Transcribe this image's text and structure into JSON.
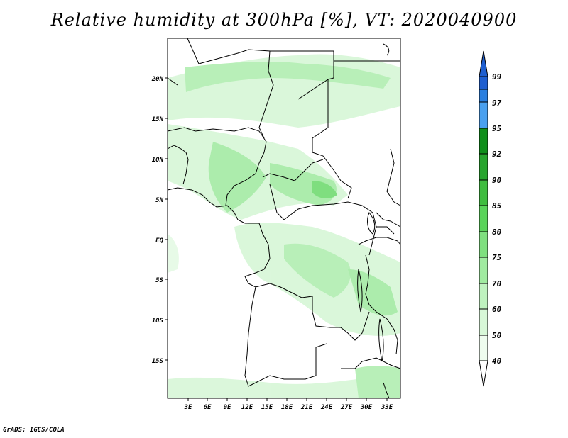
{
  "title": "Relative humidity at 300hPa [%], VT: 2020040900",
  "footer": "GrADS: IGES/COLA",
  "map": {
    "lat_labels": [
      "20N",
      "15N",
      "10N",
      "5N",
      "EQ",
      "5S",
      "10S",
      "15S"
    ],
    "lon_labels": [
      "3E",
      "6E",
      "9E",
      "12E",
      "15E",
      "18E",
      "21E",
      "24E",
      "27E",
      "30E",
      "33E"
    ]
  },
  "colorbar": {
    "levels": [
      "99",
      "97",
      "95",
      "92",
      "90",
      "85",
      "80",
      "75",
      "70",
      "60",
      "50",
      "40"
    ],
    "colors": [
      "#1f5fd0",
      "#2a7fe0",
      "#4aa0ef",
      "#0f8f1a",
      "#27a52d",
      "#3fbd3f",
      "#5ad45a",
      "#7fe07f",
      "#a0eba0",
      "#bff2bf",
      "#d8f8d8",
      "#eefcee"
    ]
  },
  "colors": {
    "land_line": "#000000",
    "humidity_light": "#d9f7d9",
    "humidity_mid": "#9fe89f",
    "humidity_dark": "#5fd15f"
  }
}
